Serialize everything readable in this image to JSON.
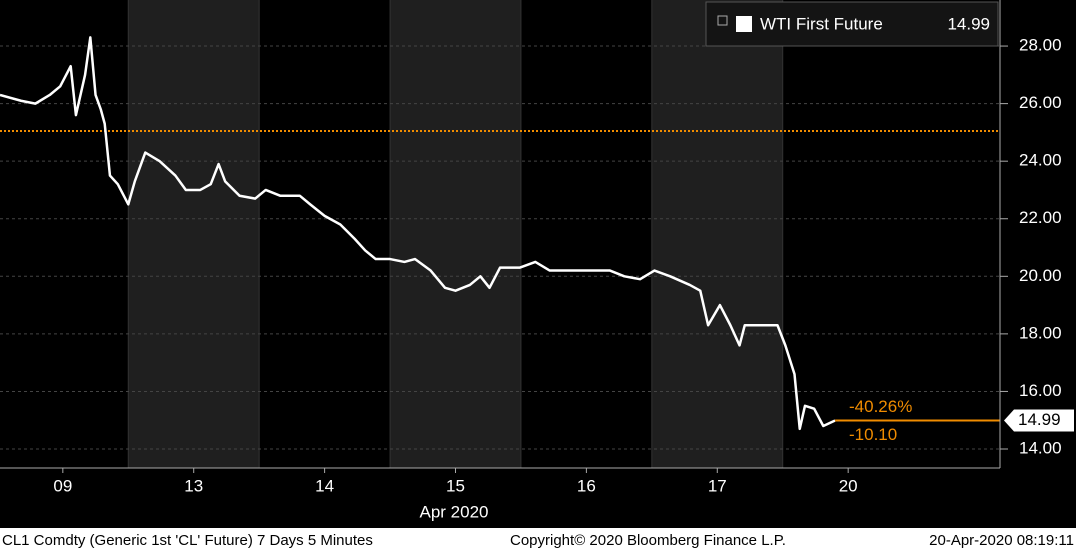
{
  "chart_data": {
    "type": "line",
    "x": [
      0.02,
      0.18,
      0.29,
      0.4,
      0.48,
      0.56,
      0.6,
      0.67,
      0.71,
      0.75,
      0.79,
      0.82,
      0.86,
      0.92,
      1.0,
      1.05,
      1.13,
      1.24,
      1.36,
      1.44,
      1.55,
      1.63,
      1.69,
      1.74,
      1.85,
      1.97,
      2.05,
      2.16,
      2.31,
      2.39,
      2.5,
      2.62,
      2.73,
      2.81,
      2.89,
      3.0,
      3.11,
      3.19,
      3.31,
      3.42,
      3.5,
      3.61,
      3.69,
      3.76,
      3.84,
      3.99,
      4.11,
      4.22,
      4.37,
      4.53,
      4.68,
      4.79,
      4.91,
      5.02,
      5.14,
      5.29,
      5.37,
      5.43,
      5.52,
      5.6,
      5.67,
      5.71,
      5.83,
      5.96,
      6.02,
      6.09,
      6.13,
      6.17,
      6.24,
      6.31,
      6.4
    ],
    "series": [
      {
        "name": "WTI First Future",
        "color": "#ffffff",
        "values": [
          26.3,
          26.1,
          26.0,
          26.3,
          26.6,
          27.3,
          25.6,
          27.0,
          28.3,
          26.3,
          25.8,
          25.3,
          23.5,
          23.2,
          22.5,
          23.3,
          24.3,
          24.0,
          23.5,
          23.0,
          23.0,
          23.2,
          23.9,
          23.3,
          22.8,
          22.7,
          23.0,
          22.8,
          22.8,
          22.5,
          22.1,
          21.8,
          21.3,
          20.9,
          20.6,
          20.6,
          20.5,
          20.6,
          20.2,
          19.6,
          19.5,
          19.7,
          20.0,
          19.6,
          20.3,
          20.3,
          20.5,
          20.2,
          20.2,
          20.2,
          20.2,
          20.0,
          19.9,
          20.2,
          20.0,
          19.7,
          19.5,
          18.3,
          19.0,
          18.3,
          17.6,
          18.3,
          18.3,
          18.3,
          17.6,
          16.6,
          14.7,
          15.5,
          15.4,
          14.8,
          14.99
        ]
      }
    ],
    "xlim": [
      0.02,
      7.66
    ],
    "xticks": [
      {
        "value": 0.5,
        "label": "09"
      },
      {
        "value": 1.5,
        "label": "13"
      },
      {
        "value": 2.5,
        "label": "14"
      },
      {
        "value": 3.5,
        "label": "15"
      },
      {
        "value": 4.5,
        "label": "16"
      },
      {
        "value": 5.5,
        "label": "17"
      },
      {
        "value": 6.5,
        "label": "20"
      }
    ],
    "x_label": "Apr 2020",
    "ylim": [
      13.34,
      29.6
    ],
    "yticks": [
      {
        "value": 14,
        "label": "14.00"
      },
      {
        "value": 16,
        "label": "16.00"
      },
      {
        "value": 18,
        "label": "18.00"
      },
      {
        "value": 20,
        "label": "20.00"
      },
      {
        "value": 22,
        "label": "22.00"
      },
      {
        "value": 24,
        "label": "24.00"
      },
      {
        "value": 26,
        "label": "26.00"
      },
      {
        "value": 28,
        "label": "28.00"
      }
    ],
    "grid": true,
    "reference_line": {
      "value": 25.05,
      "color": "#f08c00"
    },
    "annotations": [
      "-40.26%",
      "-10.10"
    ],
    "footer": [
      "CL1 Comdty (Generic 1st 'CL' Future) 7 Days 5 Minutes",
      "Copyright© 2020 Bloomberg Finance L.P.",
      "20-Apr-2020 08:19:11"
    ]
  }
}
